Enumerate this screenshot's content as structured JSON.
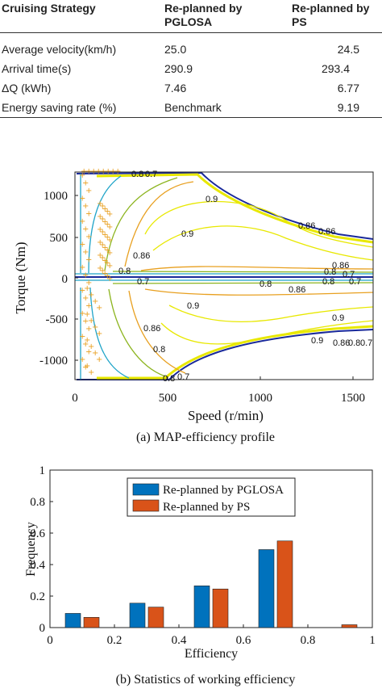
{
  "table": {
    "headers": [
      "Cruising Strategy",
      "Re-planned by PGLOSA",
      "Re-planned by PS"
    ],
    "rows": [
      [
        "Average velocity(km/h)",
        "25.0",
        "24.5"
      ],
      [
        "Arrival time(s)",
        "290.9",
        "293.4"
      ],
      [
        "ΔQ (kWh)",
        "7.46",
        "6.77"
      ],
      [
        "Energy saving rate (%)",
        "Benchmark",
        "9.19"
      ]
    ]
  },
  "captions": {
    "a": "(a) MAP-efficiency profile",
    "b": "(b) Statistics of working efficiency"
  },
  "chart_data": [
    {
      "type": "contour",
      "xlabel": "Speed (r/min)",
      "ylabel": "Torque (Nm)",
      "xlim": [
        0,
        1650
      ],
      "ylim": [
        -1250,
        1250
      ],
      "xticks": [
        "0",
        "500",
        "1000",
        "1500"
      ],
      "yticks": [
        "1000",
        "500",
        "0",
        "-500",
        "-1000"
      ],
      "contour_labels": [
        "0.8",
        "0.7",
        "0.9",
        "0.86",
        "0.86",
        "0.9",
        "0.8",
        "0.86",
        "0.8",
        "0.7",
        "0.9",
        "0.86",
        "0.8",
        "0.7",
        "0.8",
        "0.86",
        "0.9",
        "0.86",
        "0.8",
        "0.7",
        "0.9",
        "0.86",
        "0.8",
        "0.7",
        "0.8",
        "0.7"
      ],
      "colors": {
        "yellow": "#e8e800",
        "orange": "#e8a020",
        "green": "#8cb41e",
        "cyan": "#1fa4c8",
        "blue": "#1a2a9a"
      }
    },
    {
      "type": "bar",
      "ylabel": "Frequency",
      "xlabel": "Efficiency",
      "xlim": [
        0,
        1
      ],
      "ylim": [
        0,
        1
      ],
      "xticks": [
        "0",
        "0.2",
        "0.4",
        "0.6",
        "0.8",
        "1"
      ],
      "yticks": [
        "0",
        "0.2",
        "0.4",
        "0.6",
        "0.8",
        "1"
      ],
      "categories": [
        0.1,
        0.3,
        0.5,
        0.7,
        0.9
      ],
      "series": [
        {
          "name": "Re-planned by PGLOSA",
          "color": "#0072bd",
          "values": [
            0.09,
            0.155,
            0.265,
            0.495,
            0.0
          ]
        },
        {
          "name": "Re-planned by PS",
          "color": "#d95319",
          "values": [
            0.065,
            0.13,
            0.245,
            0.55,
            0.018
          ]
        }
      ],
      "legend": "top"
    }
  ]
}
